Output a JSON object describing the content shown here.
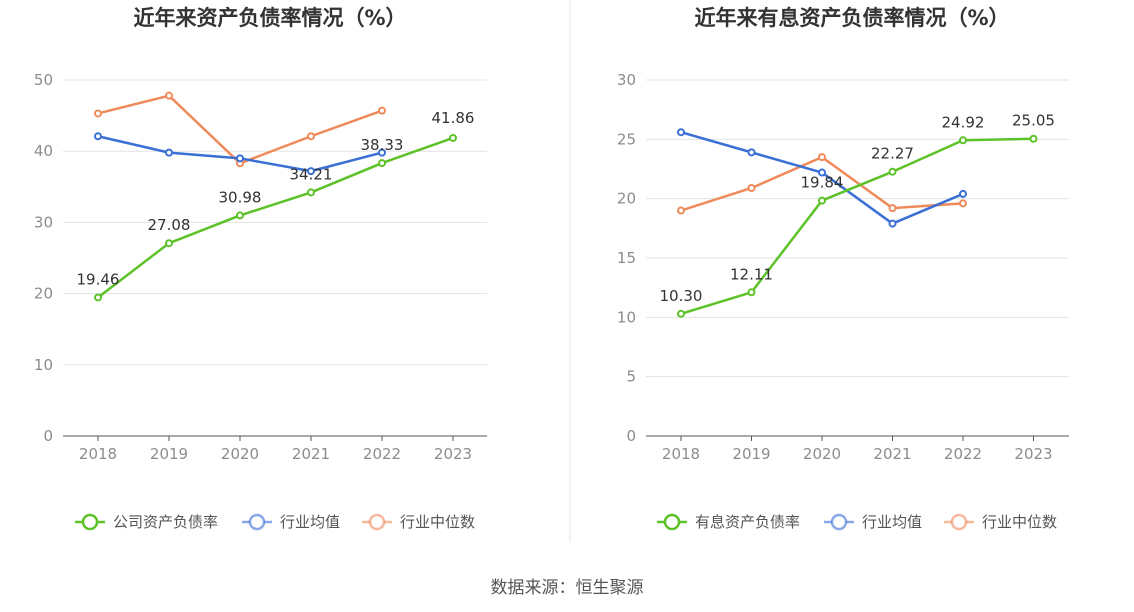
{
  "chart_data": [
    {
      "type": "line",
      "title": "近年来资产负债率情况（%）",
      "categories": [
        "2018",
        "2019",
        "2020",
        "2021",
        "2022",
        "2023"
      ],
      "ylim": [
        0,
        50
      ],
      "yticks": [
        0,
        10,
        20,
        30,
        40,
        50
      ],
      "grid": true,
      "legend_position": "bottom",
      "series": [
        {
          "name": "公司资产负债率",
          "color": "#5cc228",
          "values": [
            19.46,
            27.08,
            30.98,
            34.21,
            38.33,
            41.86
          ],
          "labels": [
            "19.46",
            "27.08",
            "30.98",
            "34.21",
            "38.33",
            "41.86"
          ]
        },
        {
          "name": "行业均值",
          "color": "#3a70d6",
          "values": [
            42.1,
            39.8,
            39.0,
            37.2,
            39.8,
            null
          ]
        },
        {
          "name": "行业中位数",
          "color": "#ef8a5b",
          "values": [
            45.3,
            47.8,
            38.3,
            42.1,
            45.7,
            null
          ]
        }
      ]
    },
    {
      "type": "line",
      "title": "近年来有息资产负债率情况（%）",
      "categories": [
        "2018",
        "2019",
        "2020",
        "2021",
        "2022",
        "2023"
      ],
      "ylim": [
        0,
        30
      ],
      "yticks": [
        0,
        5,
        10,
        15,
        20,
        25,
        30
      ],
      "grid": true,
      "legend_position": "bottom",
      "series": [
        {
          "name": "有息资产负债率",
          "color": "#5cc228",
          "values": [
            10.3,
            12.11,
            19.84,
            22.27,
            24.92,
            25.05
          ],
          "labels": [
            "10.30",
            "12.11",
            "19.84",
            "22.27",
            "24.92",
            "25.05"
          ]
        },
        {
          "name": "行业均值",
          "color": "#3a70d6",
          "values": [
            25.6,
            23.9,
            22.2,
            17.9,
            20.4,
            null
          ]
        },
        {
          "name": "行业中位数",
          "color": "#ef8a5b",
          "values": [
            19.0,
            20.9,
            23.5,
            19.2,
            19.6,
            null
          ]
        }
      ]
    }
  ],
  "source_text": "数据来源：恒生聚源"
}
